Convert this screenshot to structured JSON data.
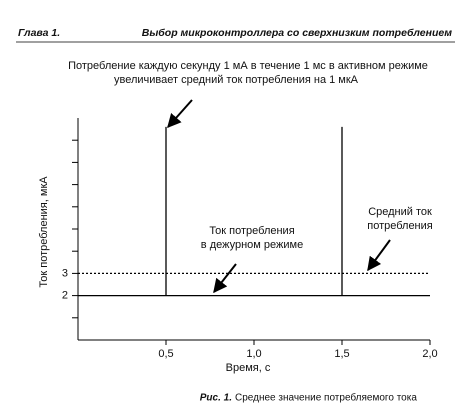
{
  "header": {
    "chapter": "Глава 1.",
    "title": "Выбор микроконтроллера со сверхнизким потреблением"
  },
  "chart_data": {
    "type": "line",
    "xlabel": "Время, с",
    "ylabel": "Ток потребления, мкА",
    "xlim": [
      0,
      2.0
    ],
    "ylim": [
      0,
      10
    ],
    "xticks": [
      {
        "value": 0.5,
        "label": "0,5"
      },
      {
        "value": 1.0,
        "label": "1,0"
      },
      {
        "value": 1.5,
        "label": "1,5"
      },
      {
        "value": 2.0,
        "label": "2,0"
      }
    ],
    "yticks": [
      2,
      3
    ],
    "yminorticks": [
      1,
      4,
      5,
      6,
      7,
      8,
      9
    ],
    "series": [
      {
        "color": "#000000",
        "style": "solid",
        "x": [
          0,
          0.5,
          0.5,
          0.5,
          1.5,
          1.5,
          1.5,
          2.0
        ],
        "values": [
          2,
          2,
          9.6,
          2,
          2,
          9.6,
          2,
          2
        ]
      },
      {
        "color": "#000000",
        "style": "dotted",
        "x": [
          0,
          2.0
        ],
        "values": [
          3,
          3
        ]
      }
    ],
    "annotations": [
      {
        "lines": [
          "Потребление каждую секунду 1 мА в течение 1 мс в активном режиме",
          "увеличивает средний ток потребления на 1 мкА"
        ]
      },
      {
        "lines": [
          "Ток потребления",
          "в дежурном режиме"
        ]
      },
      {
        "lines": [
          "Средний ток",
          "потребления"
        ]
      }
    ]
  },
  "caption": {
    "label": "Рис. 1.",
    "text": "Среднее значение потребляемого тока"
  }
}
